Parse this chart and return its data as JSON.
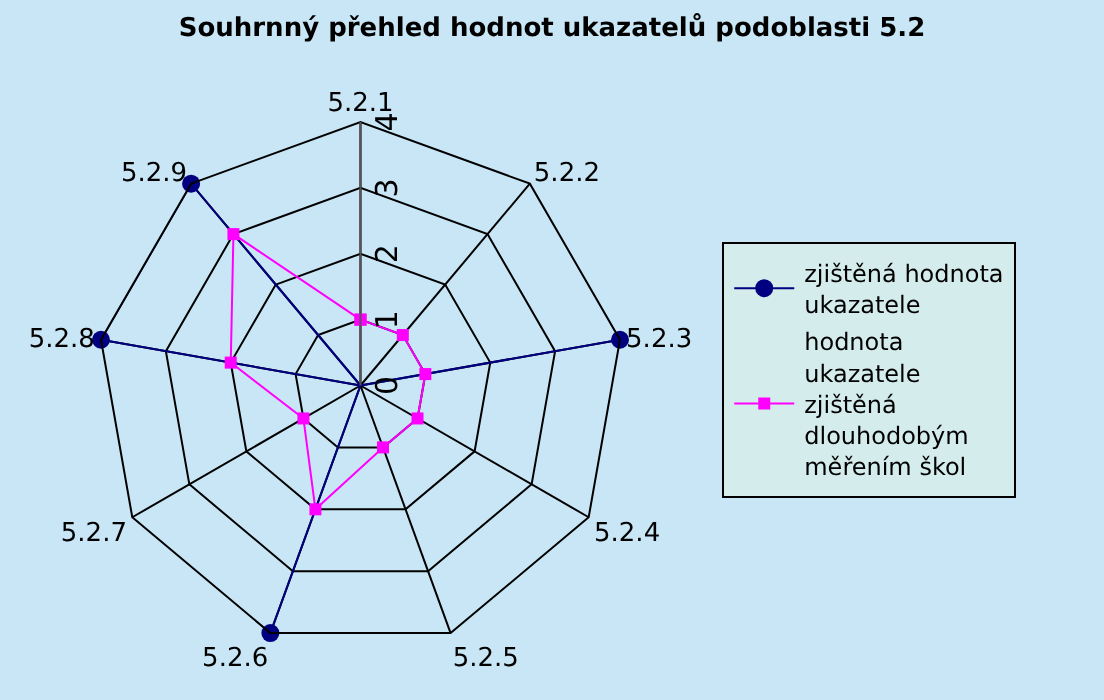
{
  "chart_data": {
    "type": "radar",
    "title": "Souhrnný přehled hodnot ukazatelů podoblasti 5.2",
    "categories": [
      "5.2.1",
      "5.2.2",
      "5.2.3",
      "5.2.4",
      "5.2.5",
      "5.2.6",
      "5.2.7",
      "5.2.8",
      "5.2.9"
    ],
    "series": [
      {
        "name": "zjištěná hodnota ukazatele",
        "color": "#000080",
        "marker": "circle",
        "values": [
          0,
          0,
          4,
          0,
          0,
          4,
          0,
          4,
          4
        ]
      },
      {
        "name": "hodnota ukazatele zjištěná dlouhodobým měřením škol",
        "color": "#ff00ff",
        "marker": "square",
        "values": [
          1,
          1,
          1,
          1,
          1,
          2,
          1,
          2,
          3
        ]
      }
    ],
    "ylim": [
      0,
      4
    ],
    "yticks": [
      0,
      1,
      2,
      3,
      4
    ],
    "grid": true,
    "legend": "right"
  }
}
